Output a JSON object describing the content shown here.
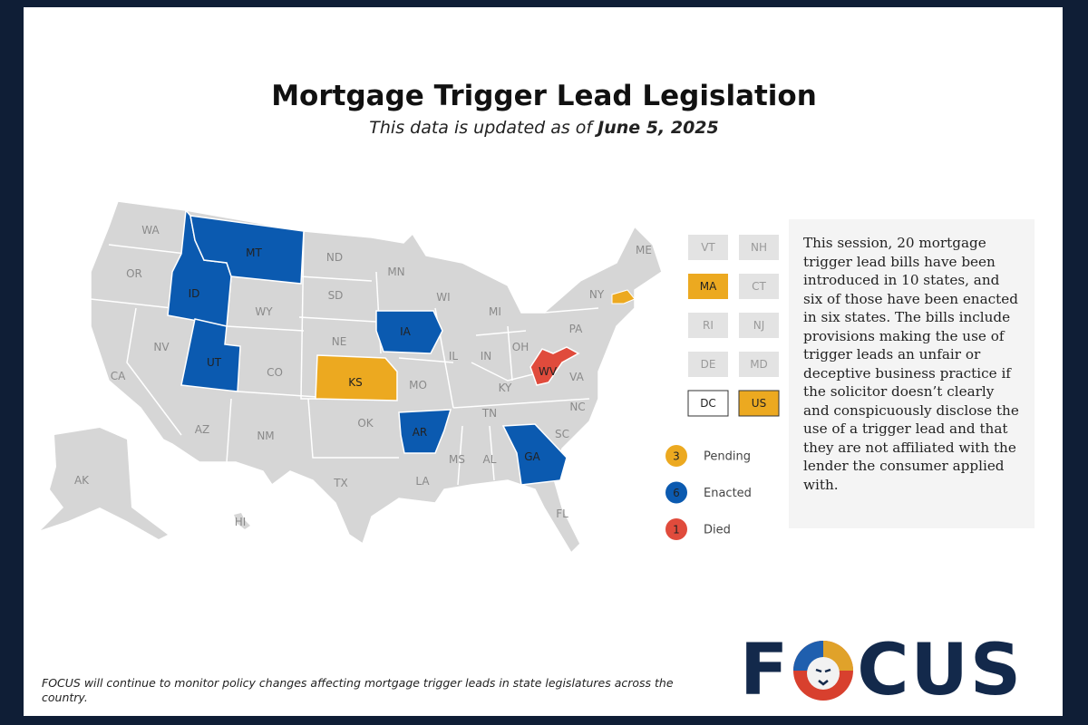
{
  "header": {
    "title": "Mortgage Trigger Lead Legislation",
    "subtitle_prefix": "This data is updated as of ",
    "subtitle_date": "June 5, 2025"
  },
  "map": {
    "states": [
      {
        "label": "WA"
      },
      {
        "label": "OR"
      },
      {
        "label": "CA"
      },
      {
        "label": "NV"
      },
      {
        "label": "ID",
        "color": "#0b5ab0"
      },
      {
        "label": "MT",
        "color": "#0b5ab0"
      },
      {
        "label": "WY"
      },
      {
        "label": "UT",
        "color": "#0b5ab0"
      },
      {
        "label": "CO"
      },
      {
        "label": "AZ"
      },
      {
        "label": "NM"
      },
      {
        "label": "ND"
      },
      {
        "label": "SD"
      },
      {
        "label": "NE"
      },
      {
        "label": "KS",
        "color": "#eca920"
      },
      {
        "label": "OK"
      },
      {
        "label": "TX"
      },
      {
        "label": "MN"
      },
      {
        "label": "IA",
        "color": "#0b5ab0"
      },
      {
        "label": "MO"
      },
      {
        "label": "AR",
        "color": "#0b5ab0"
      },
      {
        "label": "LA"
      },
      {
        "label": "WI"
      },
      {
        "label": "IL"
      },
      {
        "label": "MS"
      },
      {
        "label": "MI"
      },
      {
        "label": "IN"
      },
      {
        "label": "OH"
      },
      {
        "label": "KY"
      },
      {
        "label": "TN"
      },
      {
        "label": "AL"
      },
      {
        "label": "GA",
        "color": "#0b5ab0"
      },
      {
        "label": "FL"
      },
      {
        "label": "SC"
      },
      {
        "label": "NC"
      },
      {
        "label": "VA"
      },
      {
        "label": "WV",
        "color": "#e04b3c"
      },
      {
        "label": "PA"
      },
      {
        "label": "NY"
      },
      {
        "label": "ME"
      },
      {
        "label": "AK"
      },
      {
        "label": "HI"
      }
    ],
    "small_states": [
      {
        "label": "VT"
      },
      {
        "label": "NH"
      },
      {
        "label": "MA",
        "color": "#eca920"
      },
      {
        "label": "CT"
      },
      {
        "label": "RI"
      },
      {
        "label": "NJ"
      },
      {
        "label": "DE"
      },
      {
        "label": "MD"
      },
      {
        "label": "DC",
        "outlined": true
      },
      {
        "label": "US",
        "color": "#eca920",
        "outlined": true
      }
    ]
  },
  "legend": [
    {
      "count": 3,
      "label": "Pending",
      "color": "#eca920"
    },
    {
      "count": 6,
      "label": "Enacted",
      "color": "#0b5ab0"
    },
    {
      "count": 1,
      "label": "Died",
      "color": "#e04b3c"
    }
  ],
  "summary": "This session, 20 mortgage trigger lead bills have been introduced in 10 states, and six of those have been enacted in six states. The bills include provisions making the use of trigger leads an unfair or deceptive business practice if the solicitor doesn’t clearly and conspicuously disclose the use of a trigger lead and that they are not affiliated with the lender the consumer applied with.",
  "footnote": "FOCUS will continue to monitor policy changes affecting mortgage trigger leads in state legislatures across the country.",
  "logo": {
    "left": "F",
    "right": "CUS"
  }
}
